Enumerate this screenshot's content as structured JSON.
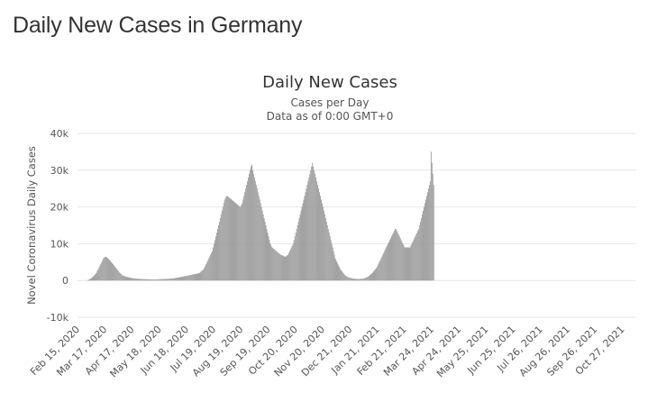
{
  "page": {
    "heading": "Daily New Cases in Germany"
  },
  "colors": {
    "bar": "#999999",
    "grid": "#e6e6e6",
    "text": "#333333"
  },
  "chart_data": {
    "type": "bar",
    "title": "Daily New Cases",
    "subtitle_1": "Cases per Day",
    "subtitle_2": "Data as of 0:00 GMT+0",
    "ylabel": "Novel Coronavirus Daily Cases",
    "xlabel": "",
    "ylim": [
      -10000,
      40000
    ],
    "y_ticks": [
      -10000,
      0,
      10000,
      20000,
      30000,
      40000
    ],
    "y_tick_labels": [
      "-10k",
      "0",
      "10k",
      "20k",
      "30k",
      "40k"
    ],
    "x_tick_labels": [
      "Feb 15, 2020",
      "Mar 17, 2020",
      "Apr 17, 2020",
      "May 18, 2020",
      "Jun 18, 2020",
      "Jul 19, 2020",
      "Aug 19, 2020",
      "Sep 19, 2020",
      "Oct 20, 2020",
      "Nov 20, 2020",
      "Dec 21, 2020",
      "Jan 21, 2021",
      "Feb 21, 2021",
      "Mar 24, 2021",
      "Apr 24, 2021",
      "May 25, 2021",
      "Jun 25, 2021",
      "Jul 26, 2021",
      "Aug 26, 2021",
      "Sep 26, 2021",
      "Oct 27, 2021"
    ],
    "x_tick_day_offsets": [
      0,
      31,
      62,
      93,
      124,
      155,
      186,
      217,
      248,
      279,
      310,
      341,
      372,
      403,
      434,
      465,
      496,
      527,
      558,
      589,
      620
    ],
    "start_date": "2020-02-15",
    "grid": true,
    "legend": "none",
    "series": [
      {
        "name": "",
        "days_per_value": 1,
        "values": [
          0,
          0,
          0,
          0,
          0,
          0,
          0,
          0,
          0,
          0,
          50,
          100,
          200,
          300,
          400,
          600,
          800,
          1000,
          1200,
          1500,
          1800,
          2100,
          2600,
          3000,
          3500,
          4000,
          4500,
          5000,
          5500,
          6000,
          6200,
          6400,
          6500,
          6300,
          6100,
          5900,
          5600,
          5300,
          5000,
          4700,
          4400,
          4100,
          3800,
          3500,
          3200,
          2900,
          2600,
          2300,
          2000,
          1800,
          1600,
          1400,
          1300,
          1200,
          1100,
          1000,
          950,
          900,
          850,
          800,
          750,
          700,
          650,
          600,
          580,
          560,
          540,
          520,
          500,
          480,
          460,
          440,
          420,
          400,
          390,
          380,
          370,
          360,
          350,
          340,
          330,
          320,
          310,
          300,
          300,
          300,
          300,
          300,
          300,
          300,
          310,
          320,
          330,
          340,
          350,
          360,
          370,
          380,
          390,
          400,
          420,
          440,
          460,
          480,
          500,
          520,
          540,
          560,
          580,
          600,
          640,
          680,
          720,
          760,
          800,
          850,
          900,
          950,
          1000,
          1050,
          1100,
          1150,
          1200,
          1250,
          1300,
          1350,
          1400,
          1450,
          1500,
          1550,
          1600,
          1650,
          1700,
          1750,
          1800,
          1850,
          1900,
          1950,
          2000,
          2200,
          2400,
          2600,
          2800,
          3000,
          3500,
          4000,
          4500,
          5000,
          5500,
          6000,
          6500,
          7000,
          7500,
          8000,
          9000,
          10000,
          11000,
          12000,
          13000,
          14000,
          15000,
          16000,
          17000,
          18000,
          19000,
          20000,
          21000,
          22000,
          22500,
          23000,
          23000,
          22800,
          22600,
          22400,
          22200,
          22000,
          21800,
          21600,
          21400,
          21200,
          21000,
          20800,
          20600,
          20400,
          20200,
          20000,
          20500,
          21000,
          22000,
          23000,
          24000,
          25000,
          26000,
          27000,
          28000,
          29000,
          30000,
          31000,
          31500,
          30000,
          29000,
          28000,
          27000,
          26000,
          25000,
          24000,
          23000,
          22000,
          21000,
          20000,
          19000,
          18000,
          17000,
          16000,
          15000,
          14000,
          13000,
          12000,
          11000,
          10000,
          9500,
          9000,
          8800,
          8600,
          8400,
          8200,
          8000,
          7800,
          7600,
          7400,
          7200,
          7000,
          6900,
          6800,
          6700,
          6600,
          6500,
          6600,
          6800,
          7000,
          7500,
          8000,
          8500,
          9000,
          9500,
          10000,
          11000,
          12000,
          13000,
          14000,
          15000,
          16000,
          17000,
          18000,
          19000,
          20000,
          21000,
          22000,
          23000,
          24000,
          25000,
          26000,
          27000,
          28000,
          29000,
          30000,
          31000,
          32000,
          31000,
          30000,
          29000,
          28000,
          27000,
          26000,
          25000,
          24000,
          23000,
          22000,
          21000,
          20000,
          19000,
          18000,
          17000,
          16000,
          15000,
          14000,
          13000,
          12000,
          11000,
          10000,
          9000,
          8000,
          7000,
          6000,
          5500,
          5000,
          4500,
          4000,
          3500,
          3000,
          2700,
          2400,
          2100,
          1800,
          1500,
          1300,
          1100,
          1000,
          900,
          800,
          700,
          650,
          600,
          550,
          500,
          480,
          460,
          440,
          420,
          400,
          420,
          440,
          460,
          480,
          500,
          550,
          600,
          700,
          800,
          900,
          1000,
          1200,
          1400,
          1600,
          1800,
          2000,
          2300,
          2600,
          2900,
          3200,
          3500,
          4000,
          4500,
          5000,
          5500,
          6000,
          6500,
          7000,
          7500,
          8000,
          8500,
          9000,
          9500,
          10000,
          10500,
          11000,
          11500,
          12000,
          12500,
          13000,
          13500,
          14000,
          14000,
          13500,
          13000,
          12500,
          12000,
          11500,
          11000,
          10500,
          10000,
          9500,
          9000,
          9000,
          9000,
          9000,
          9000,
          9000,
          9000,
          9500,
          10000,
          10500,
          11000,
          11500,
          12000,
          12500,
          13000,
          13500,
          14000,
          15000,
          16000,
          17000,
          18000,
          19000,
          20000,
          21000,
          22000,
          23000,
          24000,
          25000,
          26000,
          27000,
          35000,
          32000,
          29000,
          26000
        ]
      }
    ]
  }
}
